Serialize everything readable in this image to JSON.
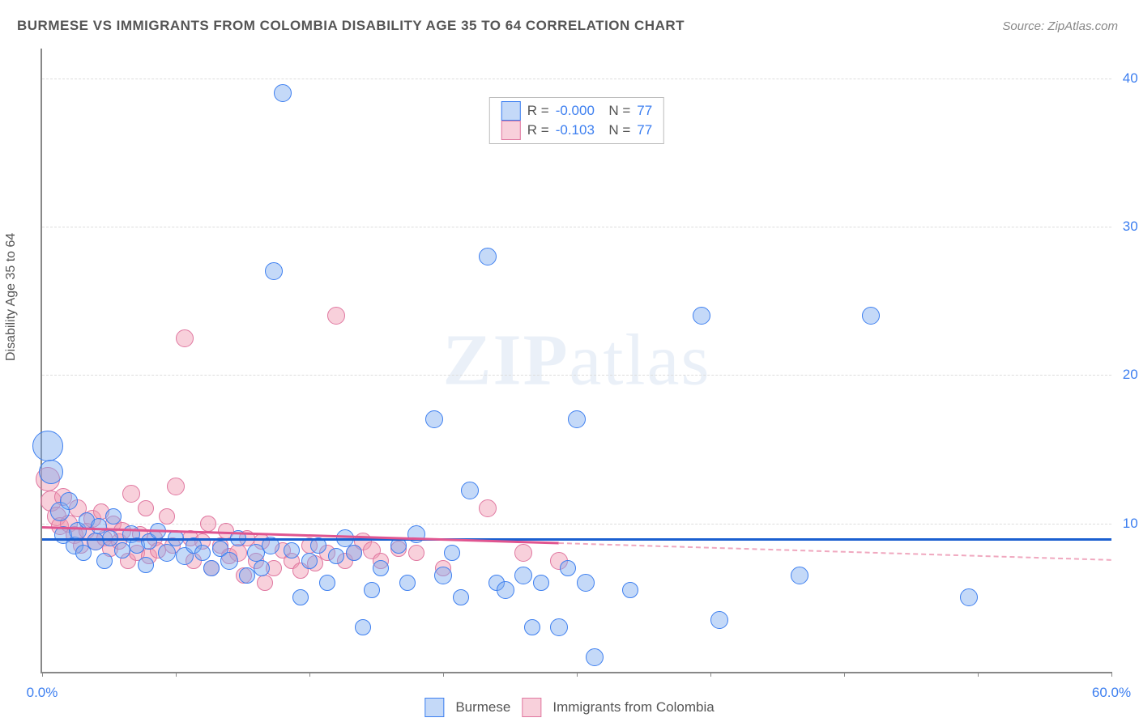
{
  "title": "BURMESE VS IMMIGRANTS FROM COLOMBIA DISABILITY AGE 35 TO 64 CORRELATION CHART",
  "source": {
    "prefix": "Source:",
    "name": "ZipAtlas.com"
  },
  "watermark": {
    "bold": "ZIP",
    "thin": "atlas"
  },
  "chart": {
    "type": "scatter",
    "ylabel": "Disability Age 35 to 64",
    "xlim": [
      0,
      60
    ],
    "ylim": [
      0,
      42
    ],
    "ygrid": [
      10,
      20,
      30,
      40
    ],
    "yticklabels": [
      "10.0%",
      "20.0%",
      "30.0%",
      "40.0%"
    ],
    "xticks": [
      0,
      7.5,
      15,
      22.5,
      30,
      37.5,
      45,
      52.5,
      60
    ],
    "xlabeled": [
      {
        "v": 0,
        "t": "0.0%"
      },
      {
        "v": 60,
        "t": "60.0%"
      }
    ],
    "background": "#ffffff",
    "grid_color": "#dddddd",
    "axis_color": "#888888",
    "text_color": "#555555",
    "value_color": "#3d7ff0",
    "series": [
      {
        "name": "Burmese",
        "color": "#7dabf0",
        "border": "#3d7ff0",
        "r": "-0.000",
        "n": "77",
        "regression": {
          "y1": 9.0,
          "y2": 9.0
        },
        "points": [
          [
            0.3,
            15.2,
            18
          ],
          [
            0.5,
            13.5,
            14
          ],
          [
            1.0,
            10.8,
            11
          ],
          [
            1.2,
            9.2,
            10
          ],
          [
            1.5,
            11.5,
            10
          ],
          [
            1.8,
            8.5,
            10
          ],
          [
            2.0,
            9.5,
            10
          ],
          [
            2.3,
            8.0,
            9
          ],
          [
            2.5,
            10.2,
            9
          ],
          [
            3.0,
            8.8,
            10
          ],
          [
            3.2,
            9.8,
            9
          ],
          [
            3.5,
            7.5,
            9
          ],
          [
            3.8,
            9.0,
            9
          ],
          [
            4.0,
            10.5,
            9
          ],
          [
            4.5,
            8.2,
            9
          ],
          [
            5.0,
            9.3,
            10
          ],
          [
            5.3,
            8.5,
            9
          ],
          [
            5.8,
            7.2,
            9
          ],
          [
            6.0,
            8.8,
            9
          ],
          [
            6.5,
            9.5,
            9
          ],
          [
            7.0,
            8.0,
            10
          ],
          [
            7.5,
            9.0,
            9
          ],
          [
            8.0,
            7.8,
            10
          ],
          [
            8.5,
            8.5,
            9
          ],
          [
            9.0,
            8.0,
            9
          ],
          [
            9.5,
            7.0,
            9
          ],
          [
            10.0,
            8.3,
            9
          ],
          [
            10.5,
            7.5,
            10
          ],
          [
            11.0,
            9.0,
            9
          ],
          [
            11.5,
            6.5,
            9
          ],
          [
            12.0,
            8.0,
            10
          ],
          [
            12.3,
            7.0,
            9
          ],
          [
            12.8,
            8.5,
            10
          ],
          [
            13.0,
            27.0,
            10
          ],
          [
            13.5,
            39.0,
            10
          ],
          [
            14.0,
            8.2,
            9
          ],
          [
            14.5,
            5.0,
            9
          ],
          [
            15.0,
            7.5,
            9
          ],
          [
            15.5,
            8.5,
            9
          ],
          [
            16.0,
            6.0,
            9
          ],
          [
            16.5,
            7.8,
            9
          ],
          [
            17.0,
            9.0,
            10
          ],
          [
            17.5,
            8.0,
            9
          ],
          [
            18.0,
            3.0,
            9
          ],
          [
            18.5,
            5.5,
            9
          ],
          [
            19.0,
            7.0,
            9
          ],
          [
            20.0,
            8.5,
            9
          ],
          [
            20.5,
            6.0,
            9
          ],
          [
            21.0,
            9.3,
            10
          ],
          [
            22.0,
            17.0,
            10
          ],
          [
            22.5,
            6.5,
            10
          ],
          [
            23.0,
            8.0,
            9
          ],
          [
            23.5,
            5.0,
            9
          ],
          [
            24.0,
            12.2,
            10
          ],
          [
            25.0,
            28.0,
            10
          ],
          [
            25.5,
            6.0,
            9
          ],
          [
            26.0,
            5.5,
            10
          ],
          [
            27.0,
            6.5,
            10
          ],
          [
            27.5,
            3.0,
            9
          ],
          [
            28.0,
            6.0,
            9
          ],
          [
            29.0,
            3.0,
            10
          ],
          [
            29.5,
            7.0,
            9
          ],
          [
            30.0,
            17.0,
            10
          ],
          [
            30.5,
            6.0,
            10
          ],
          [
            31.0,
            1.0,
            10
          ],
          [
            33.0,
            5.5,
            9
          ],
          [
            37.0,
            24.0,
            10
          ],
          [
            38.0,
            3.5,
            10
          ],
          [
            42.5,
            6.5,
            10
          ],
          [
            46.5,
            24.0,
            10
          ],
          [
            52.0,
            5.0,
            10
          ]
        ]
      },
      {
        "name": "Immigrants from Colombia",
        "color": "#f096af",
        "border": "#e077a0",
        "r": "-0.103",
        "n": "77",
        "regression": {
          "y1": 9.8,
          "y2": 7.6,
          "solid_until": 29,
          "dash_to": 60
        },
        "points": [
          [
            0.3,
            13.0,
            14
          ],
          [
            0.5,
            11.5,
            12
          ],
          [
            0.8,
            10.5,
            11
          ],
          [
            1.0,
            9.8,
            10
          ],
          [
            1.2,
            11.8,
            10
          ],
          [
            1.5,
            10.0,
            10
          ],
          [
            1.8,
            9.2,
            10
          ],
          [
            2.0,
            11.0,
            10
          ],
          [
            2.2,
            8.5,
            9
          ],
          [
            2.5,
            9.5,
            9
          ],
          [
            2.8,
            10.3,
            10
          ],
          [
            3.0,
            8.8,
            10
          ],
          [
            3.3,
            10.8,
            9
          ],
          [
            3.5,
            9.0,
            9
          ],
          [
            3.8,
            8.3,
            9
          ],
          [
            4.0,
            10.0,
            9
          ],
          [
            4.3,
            8.8,
            9
          ],
          [
            4.5,
            9.5,
            10
          ],
          [
            4.8,
            7.5,
            9
          ],
          [
            5.0,
            12.0,
            10
          ],
          [
            5.3,
            8.0,
            9
          ],
          [
            5.5,
            9.3,
            9
          ],
          [
            5.8,
            11.0,
            9
          ],
          [
            6.0,
            7.8,
            9
          ],
          [
            6.3,
            9.0,
            9
          ],
          [
            6.5,
            8.2,
            9
          ],
          [
            7.0,
            10.5,
            9
          ],
          [
            7.3,
            8.5,
            9
          ],
          [
            7.5,
            12.5,
            10
          ],
          [
            8.0,
            22.5,
            10
          ],
          [
            8.3,
            9.0,
            9
          ],
          [
            8.5,
            7.5,
            9
          ],
          [
            9.0,
            8.8,
            9
          ],
          [
            9.3,
            10.0,
            9
          ],
          [
            9.5,
            7.0,
            9
          ],
          [
            10.0,
            8.5,
            9
          ],
          [
            10.3,
            9.5,
            9
          ],
          [
            10.5,
            7.8,
            9
          ],
          [
            11.0,
            8.0,
            10
          ],
          [
            11.3,
            6.5,
            9
          ],
          [
            11.5,
            9.0,
            9
          ],
          [
            12.0,
            7.5,
            9
          ],
          [
            12.3,
            8.8,
            9
          ],
          [
            12.5,
            6.0,
            9
          ],
          [
            13.0,
            7.0,
            9
          ],
          [
            13.5,
            8.2,
            9
          ],
          [
            14.0,
            7.5,
            9
          ],
          [
            14.5,
            6.8,
            9
          ],
          [
            15.0,
            8.5,
            9
          ],
          [
            15.3,
            7.3,
            9
          ],
          [
            16.0,
            8.0,
            9
          ],
          [
            16.5,
            24.0,
            10
          ],
          [
            17.0,
            7.5,
            9
          ],
          [
            17.5,
            8.0,
            9
          ],
          [
            18.0,
            8.8,
            10
          ],
          [
            18.5,
            8.2,
            10
          ],
          [
            19.0,
            7.5,
            9
          ],
          [
            20.0,
            8.3,
            9
          ],
          [
            21.0,
            8.0,
            9
          ],
          [
            22.5,
            7.0,
            9
          ],
          [
            25.0,
            11.0,
            10
          ],
          [
            27.0,
            8.0,
            10
          ],
          [
            29.0,
            7.5,
            10
          ]
        ]
      }
    ]
  }
}
